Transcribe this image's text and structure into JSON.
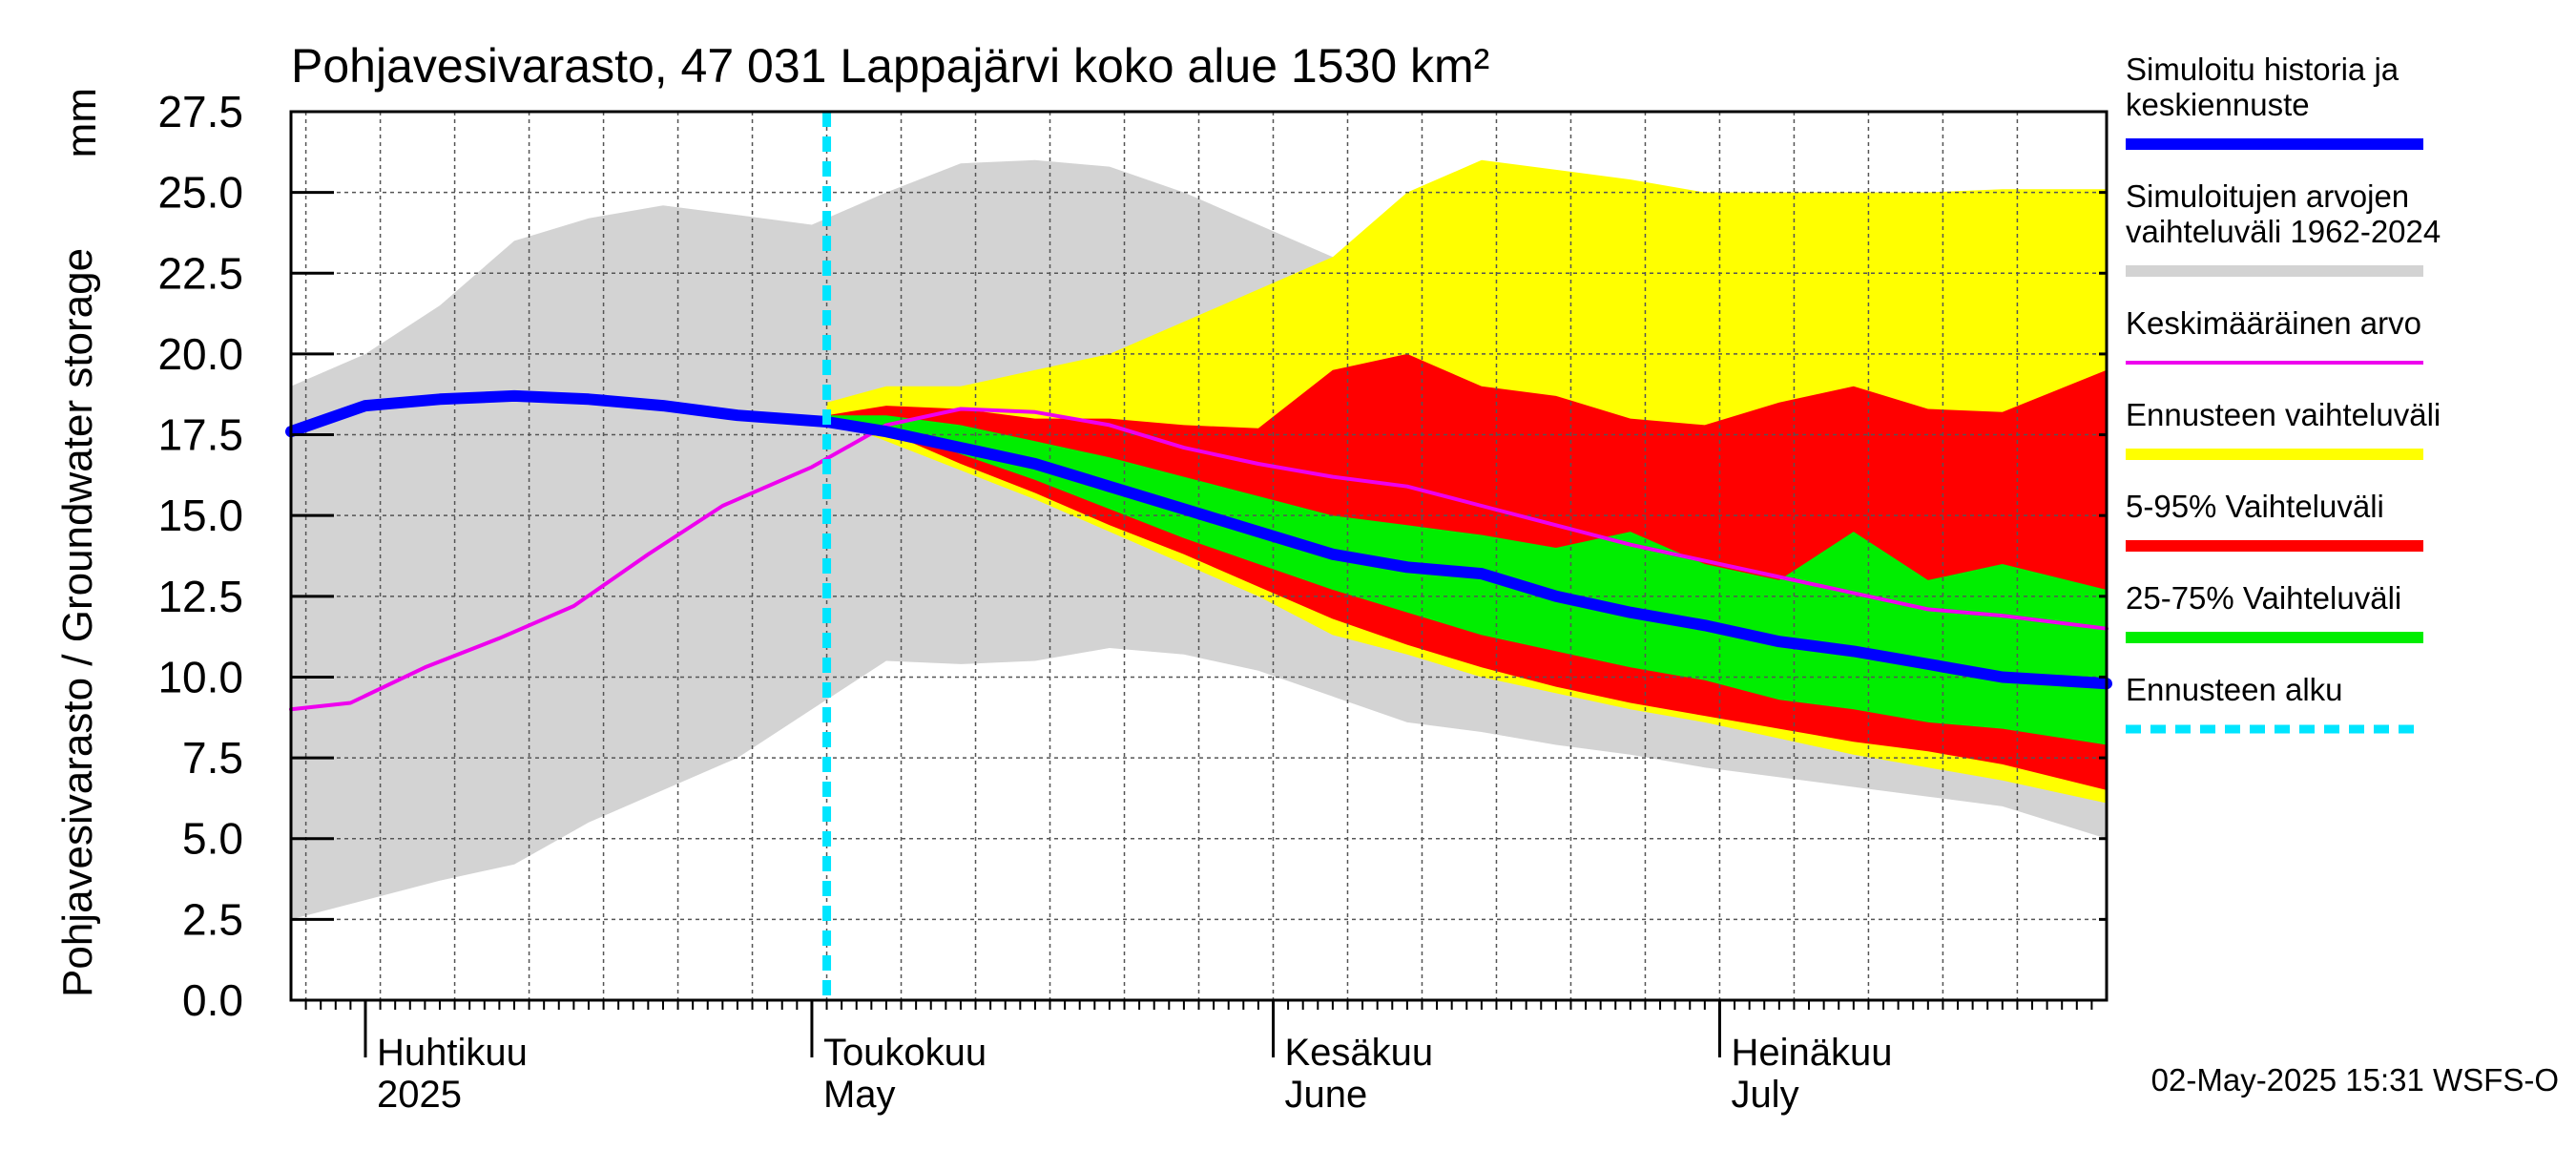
{
  "chart_data": {
    "type": "area",
    "title": "Pohjavesivarasto, 47 031 Lappajärvi koko alue 1530 km²",
    "unit_label": "mm",
    "ylabel": "Pohjavesivarasto / Groundwater storage",
    "ylim": [
      0,
      27.5
    ],
    "yticks": [
      "0.0",
      "2.5",
      "5.0",
      "7.5",
      "10.0",
      "12.5",
      "15.0",
      "17.5",
      "20.0",
      "22.5",
      "25.0",
      "27.5"
    ],
    "xlim": [
      "2025-03-27",
      "2025-07-27"
    ],
    "month_labels": [
      {
        "date": "2025-04-01",
        "fi": "Huhtikuu",
        "en": "2025"
      },
      {
        "date": "2025-05-01",
        "fi": "Toukokuu",
        "en": "May"
      },
      {
        "date": "2025-06-01",
        "fi": "Kesäkuu",
        "en": "June"
      },
      {
        "date": "2025-07-01",
        "fi": "Heinäkuu",
        "en": "July"
      }
    ],
    "forecast_start": "2025-05-02",
    "timestamp": "02-May-2025 15:31 WSFS-O",
    "grid": true,
    "legend_position": "right",
    "colors": {
      "historical_range": "#d3d3d3",
      "forecast_range": "#ffff00",
      "p5_95": "#ff0000",
      "p25_75": "#00ee00",
      "median": "#0000ff",
      "mean": "#ee00ee",
      "forecast_start": "#00e5ff"
    },
    "series": [
      {
        "name": "Simuloitujen arvojen vaihteluväli 1962-2024",
        "kind": "band",
        "x": [
          "2025-03-27",
          "2025-04-01",
          "2025-04-06",
          "2025-04-11",
          "2025-04-16",
          "2025-04-21",
          "2025-04-26",
          "2025-05-01",
          "2025-05-06",
          "2025-05-11",
          "2025-05-16",
          "2025-05-21",
          "2025-05-26",
          "2025-05-31",
          "2025-06-05",
          "2025-06-10",
          "2025-06-15",
          "2025-06-20",
          "2025-06-25",
          "2025-06-30",
          "2025-07-05",
          "2025-07-10",
          "2025-07-15",
          "2025-07-20",
          "2025-07-27"
        ],
        "low": [
          2.5,
          3.1,
          3.7,
          4.2,
          5.5,
          6.5,
          7.5,
          9.0,
          10.5,
          10.4,
          10.5,
          10.9,
          10.7,
          10.2,
          9.4,
          8.6,
          8.3,
          7.9,
          7.6,
          7.2,
          6.9,
          6.6,
          6.3,
          6.0,
          5.0
        ],
        "high": [
          19.0,
          20.0,
          21.5,
          23.5,
          24.2,
          24.6,
          24.3,
          24.0,
          25.0,
          25.9,
          26.0,
          25.8,
          25.0,
          24.0,
          23.0,
          22.0,
          21.5,
          21.5,
          21.0,
          21.2,
          21.0,
          21.3,
          21.2,
          21.4,
          22.5
        ]
      },
      {
        "name": "Ennusteen vaihteluväli",
        "kind": "band",
        "x": [
          "2025-05-02",
          "2025-05-06",
          "2025-05-11",
          "2025-05-16",
          "2025-05-21",
          "2025-05-26",
          "2025-05-31",
          "2025-06-05",
          "2025-06-10",
          "2025-06-15",
          "2025-06-20",
          "2025-06-25",
          "2025-06-30",
          "2025-07-05",
          "2025-07-10",
          "2025-07-15",
          "2025-07-20",
          "2025-07-27"
        ],
        "low": [
          18.0,
          17.3,
          16.4,
          15.5,
          14.5,
          13.5,
          12.5,
          11.3,
          10.7,
          10.0,
          9.5,
          9.0,
          8.6,
          8.1,
          7.6,
          7.2,
          6.8,
          6.1
        ],
        "high": [
          18.5,
          19.0,
          19.0,
          19.5,
          20.0,
          21.0,
          22.0,
          23.0,
          25.0,
          26.0,
          25.7,
          25.4,
          25.0,
          25.0,
          25.0,
          25.0,
          25.1,
          25.1
        ]
      },
      {
        "name": "5-95% Vaihteluväli",
        "kind": "band",
        "x": [
          "2025-05-02",
          "2025-05-06",
          "2025-05-11",
          "2025-05-16",
          "2025-05-21",
          "2025-05-26",
          "2025-05-31",
          "2025-06-05",
          "2025-06-10",
          "2025-06-15",
          "2025-06-20",
          "2025-06-25",
          "2025-06-30",
          "2025-07-05",
          "2025-07-10",
          "2025-07-15",
          "2025-07-20",
          "2025-07-27"
        ],
        "low": [
          18.0,
          17.6,
          16.6,
          15.7,
          14.7,
          13.8,
          12.8,
          11.8,
          11.0,
          10.3,
          9.7,
          9.2,
          8.8,
          8.4,
          8.0,
          7.7,
          7.3,
          6.5
        ],
        "high": [
          18.1,
          18.4,
          18.3,
          18.0,
          18.0,
          17.8,
          17.7,
          19.5,
          20.0,
          19.0,
          18.7,
          18.0,
          17.8,
          18.5,
          19.0,
          18.3,
          18.2,
          19.5
        ]
      },
      {
        "name": "25-75% Vaihteluväli",
        "kind": "band",
        "x": [
          "2025-05-02",
          "2025-05-06",
          "2025-05-11",
          "2025-05-16",
          "2025-05-21",
          "2025-05-26",
          "2025-05-31",
          "2025-06-05",
          "2025-06-10",
          "2025-06-15",
          "2025-06-20",
          "2025-06-25",
          "2025-06-30",
          "2025-07-05",
          "2025-07-10",
          "2025-07-15",
          "2025-07-20",
          "2025-07-27"
        ],
        "low": [
          18.0,
          17.7,
          16.9,
          16.1,
          15.2,
          14.3,
          13.5,
          12.7,
          12.0,
          11.3,
          10.8,
          10.3,
          9.9,
          9.3,
          9.0,
          8.6,
          8.4,
          7.9
        ],
        "high": [
          18.1,
          18.1,
          17.8,
          17.3,
          16.8,
          16.2,
          15.6,
          15.0,
          14.7,
          14.4,
          14.0,
          14.5,
          13.5,
          13.0,
          14.5,
          13.0,
          13.5,
          12.7
        ]
      },
      {
        "name": "Keskimääräinen arvo",
        "kind": "line",
        "x": [
          "2025-03-27",
          "2025-03-31",
          "2025-04-05",
          "2025-04-10",
          "2025-04-15",
          "2025-04-20",
          "2025-04-25",
          "2025-05-01",
          "2025-05-06",
          "2025-05-11",
          "2025-05-16",
          "2025-05-21",
          "2025-05-26",
          "2025-05-31",
          "2025-06-05",
          "2025-06-10",
          "2025-06-15",
          "2025-06-20",
          "2025-06-25",
          "2025-06-30",
          "2025-07-05",
          "2025-07-10",
          "2025-07-15",
          "2025-07-20",
          "2025-07-27"
        ],
        "y": [
          9.0,
          9.2,
          10.3,
          11.2,
          12.2,
          13.8,
          15.3,
          16.5,
          17.8,
          18.3,
          18.2,
          17.8,
          17.1,
          16.6,
          16.2,
          15.9,
          15.3,
          14.7,
          14.1,
          13.6,
          13.1,
          12.6,
          12.1,
          11.9,
          11.5
        ]
      },
      {
        "name": "Simuloitu historia ja keskiennuste",
        "kind": "line",
        "x": [
          "2025-03-27",
          "2025-04-01",
          "2025-04-06",
          "2025-04-11",
          "2025-04-16",
          "2025-04-21",
          "2025-04-26",
          "2025-05-02",
          "2025-05-06",
          "2025-05-11",
          "2025-05-16",
          "2025-05-21",
          "2025-05-26",
          "2025-05-31",
          "2025-06-05",
          "2025-06-10",
          "2025-06-15",
          "2025-06-20",
          "2025-06-25",
          "2025-06-30",
          "2025-07-05",
          "2025-07-10",
          "2025-07-15",
          "2025-07-20",
          "2025-07-27"
        ],
        "y": [
          17.6,
          18.4,
          18.6,
          18.7,
          18.6,
          18.4,
          18.1,
          17.9,
          17.6,
          17.1,
          16.6,
          15.9,
          15.2,
          14.5,
          13.8,
          13.4,
          13.2,
          12.5,
          12.0,
          11.6,
          11.1,
          10.8,
          10.4,
          10.0,
          9.8
        ]
      },
      {
        "name": "Ennusteen alku",
        "kind": "vline",
        "x": "2025-05-02"
      }
    ],
    "legend": [
      {
        "label": "Simuloitu historia ja\nkeskiennuste",
        "color": "#0000ff",
        "style": "thick"
      },
      {
        "label": "Simuloitujen arvojen\nvaihteluväli 1962-2024",
        "color": "#d3d3d3",
        "style": "thick"
      },
      {
        "label": "Keskimääräinen arvo",
        "color": "#ee00ee",
        "style": "thin"
      },
      {
        "label": "Ennusteen vaihteluväli",
        "color": "#ffff00",
        "style": "thick"
      },
      {
        "label": "5-95% Vaihteluväli",
        "color": "#ff0000",
        "style": "thick"
      },
      {
        "label": "25-75% Vaihteluväli",
        "color": "#00ee00",
        "style": "thick"
      },
      {
        "label": "Ennusteen alku",
        "color": "#00e5ff",
        "style": "dashed"
      }
    ]
  }
}
